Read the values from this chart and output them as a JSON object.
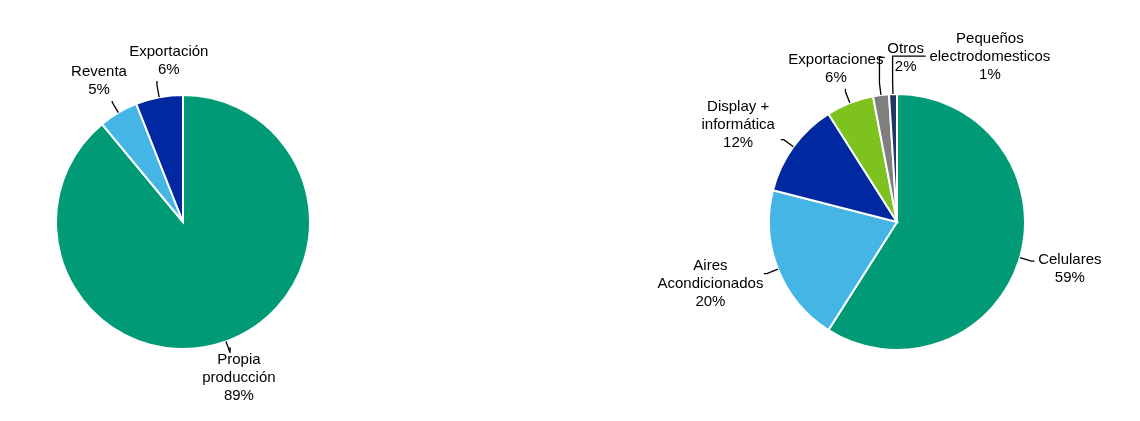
{
  "chart_data": [
    {
      "type": "pie",
      "categories": [
        "Propia producción",
        "Reventa",
        "Exportación"
      ],
      "values": [
        89,
        5,
        6
      ],
      "value_labels": [
        "89%",
        "5%",
        "6%"
      ],
      "colors": [
        "#009a77",
        "#45b5e5",
        "#0028a0"
      ]
    },
    {
      "type": "pie",
      "categories": [
        "Celulares",
        "Aires Acondicionados",
        "Display + informática",
        "Exportaciones",
        "Otros",
        "Pequeños electrodomesticos"
      ],
      "values": [
        59,
        20,
        12,
        6,
        2,
        1
      ],
      "value_labels": [
        "59%",
        "20%",
        "12%",
        "6%",
        "2%",
        "1%"
      ],
      "colors": [
        "#009a77",
        "#45b5e5",
        "#0028a0",
        "#7dc21f",
        "#7f7f7f",
        "#1f3864"
      ]
    }
  ]
}
